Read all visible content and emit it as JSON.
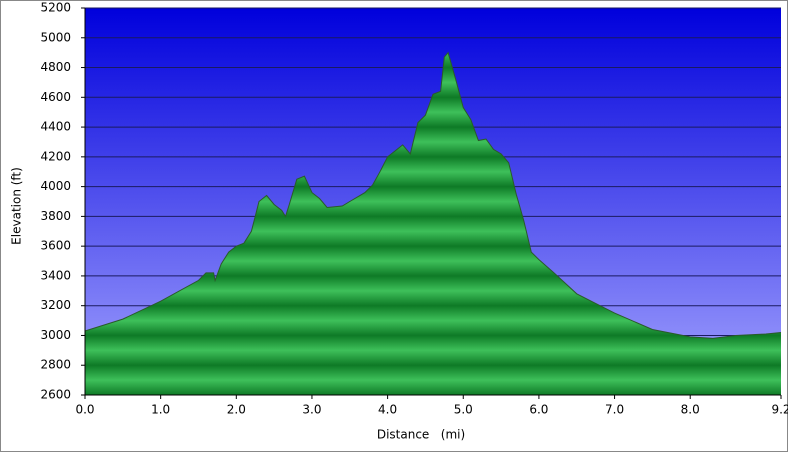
{
  "chart_data": {
    "type": "area",
    "xlabel": "Distance   (mi)",
    "ylabel": "Elevation (ft)",
    "x": [
      0.0,
      0.5,
      1.0,
      1.5,
      1.6,
      1.7,
      1.72,
      1.8,
      1.9,
      2.0,
      2.1,
      2.2,
      2.3,
      2.4,
      2.5,
      2.6,
      2.65,
      2.7,
      2.8,
      2.9,
      3.0,
      3.1,
      3.2,
      3.4,
      3.5,
      3.7,
      3.8,
      3.9,
      4.0,
      4.2,
      4.3,
      4.4,
      4.5,
      4.6,
      4.7,
      4.75,
      4.8,
      4.9,
      5.0,
      5.1,
      5.2,
      5.3,
      5.4,
      5.5,
      5.6,
      5.7,
      5.8,
      5.9,
      6.0,
      6.2,
      6.5,
      7.0,
      7.5,
      8.0,
      8.3,
      8.6,
      9.0,
      9.2
    ],
    "values": [
      3030,
      3110,
      3230,
      3370,
      3420,
      3420,
      3370,
      3480,
      3560,
      3600,
      3620,
      3700,
      3900,
      3940,
      3880,
      3840,
      3800,
      3880,
      4050,
      4070,
      3960,
      3920,
      3860,
      3870,
      3900,
      3960,
      4010,
      4100,
      4200,
      4280,
      4220,
      4430,
      4480,
      4620,
      4640,
      4870,
      4900,
      4720,
      4530,
      4450,
      4310,
      4320,
      4250,
      4220,
      4160,
      3950,
      3770,
      3560,
      3510,
      3420,
      3280,
      3150,
      3040,
      2990,
      2980,
      3000,
      3010,
      3020
    ],
    "color": "#2a5a2a",
    "xlim": [
      0,
      9.2
    ],
    "xticks": [
      {
        "value": 0,
        "label": "0.0"
      },
      {
        "value": 1,
        "label": "1.0"
      },
      {
        "value": 2,
        "label": "2.0"
      },
      {
        "value": 3,
        "label": "3.0"
      },
      {
        "value": 4,
        "label": "4.0"
      },
      {
        "value": 5,
        "label": "5.0"
      },
      {
        "value": 6,
        "label": "6.0"
      },
      {
        "value": 7,
        "label": "7.0"
      },
      {
        "value": 8,
        "label": "8.0"
      },
      {
        "value": 9.2,
        "label": "9.2"
      }
    ],
    "ylim": [
      2600,
      5200
    ],
    "yticks": [
      2600,
      2800,
      3000,
      3200,
      3400,
      3600,
      3800,
      4000,
      4200,
      4400,
      4600,
      4800,
      5000,
      5200
    ],
    "grid": true
  }
}
